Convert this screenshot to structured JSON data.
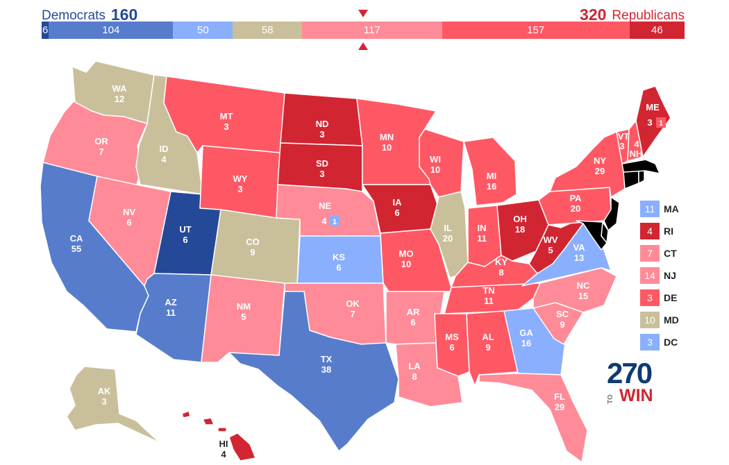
{
  "header": {
    "dem_label": "Democrats",
    "dem_total": "160",
    "rep_total": "320",
    "rep_label": "Republicans"
  },
  "colors": {
    "safe_dem": "#244999",
    "likely_dem": "#577ccc",
    "leans_dem": "#8aafff",
    "tossup": "#c9c09b",
    "leans_rep": "#ff8b98",
    "likely_rep": "#ff5865",
    "safe_rep": "#d22532"
  },
  "bar": {
    "segments": [
      {
        "value": "6",
        "category": "safe_dem"
      },
      {
        "value": "104",
        "category": "likely_dem"
      },
      {
        "value": "50",
        "category": "leans_dem"
      },
      {
        "value": "58",
        "category": "tossup"
      },
      {
        "value": "117",
        "category": "leans_rep"
      },
      {
        "value": "157",
        "category": "likely_rep"
      },
      {
        "value": "46",
        "category": "safe_rep"
      }
    ]
  },
  "states": {
    "WA": {
      "name": "WA",
      "ev": "12",
      "cat": "tossup"
    },
    "OR": {
      "name": "OR",
      "ev": "7",
      "cat": "leans_rep"
    },
    "CA": {
      "name": "CA",
      "ev": "55",
      "cat": "likely_dem"
    },
    "ID": {
      "name": "ID",
      "ev": "4",
      "cat": "tossup"
    },
    "NV": {
      "name": "NV",
      "ev": "6",
      "cat": "leans_rep"
    },
    "UT": {
      "name": "UT",
      "ev": "6",
      "cat": "safe_dem"
    },
    "AZ": {
      "name": "AZ",
      "ev": "11",
      "cat": "likely_dem"
    },
    "MT": {
      "name": "MT",
      "ev": "3",
      "cat": "likely_rep"
    },
    "WY": {
      "name": "WY",
      "ev": "3",
      "cat": "likely_rep"
    },
    "CO": {
      "name": "CO",
      "ev": "9",
      "cat": "tossup"
    },
    "NM": {
      "name": "NM",
      "ev": "5",
      "cat": "leans_rep"
    },
    "ND": {
      "name": "ND",
      "ev": "3",
      "cat": "safe_rep"
    },
    "SD": {
      "name": "SD",
      "ev": "3",
      "cat": "safe_rep"
    },
    "NE": {
      "name": "NE",
      "ev": "4",
      "ev_district": "1",
      "cat": "leans_rep"
    },
    "KS": {
      "name": "KS",
      "ev": "6",
      "cat": "leans_dem"
    },
    "OK": {
      "name": "OK",
      "ev": "7",
      "cat": "leans_rep"
    },
    "TX": {
      "name": "TX",
      "ev": "38",
      "cat": "likely_dem"
    },
    "MN": {
      "name": "MN",
      "ev": "10",
      "cat": "likely_rep"
    },
    "IA": {
      "name": "IA",
      "ev": "6",
      "cat": "safe_rep"
    },
    "MO": {
      "name": "MO",
      "ev": "10",
      "cat": "likely_rep"
    },
    "AR": {
      "name": "AR",
      "ev": "6",
      "cat": "leans_rep"
    },
    "LA": {
      "name": "LA",
      "ev": "8",
      "cat": "leans_rep"
    },
    "WI": {
      "name": "WI",
      "ev": "10",
      "cat": "likely_rep"
    },
    "IL": {
      "name": "IL",
      "ev": "20",
      "cat": "tossup"
    },
    "MI": {
      "name": "MI",
      "ev": "16",
      "cat": "likely_rep"
    },
    "IN": {
      "name": "IN",
      "ev": "11",
      "cat": "likely_rep"
    },
    "OH": {
      "name": "OH",
      "ev": "18",
      "cat": "safe_rep"
    },
    "KY": {
      "name": "KY",
      "ev": "8",
      "cat": "likely_rep"
    },
    "TN": {
      "name": "TN",
      "ev": "11",
      "cat": "likely_rep"
    },
    "MS": {
      "name": "MS",
      "ev": "6",
      "cat": "likely_rep"
    },
    "AL": {
      "name": "AL",
      "ev": "9",
      "cat": "likely_rep"
    },
    "GA": {
      "name": "GA",
      "ev": "16",
      "cat": "leans_dem"
    },
    "FL": {
      "name": "FL",
      "ev": "29",
      "cat": "leans_rep"
    },
    "SC": {
      "name": "SC",
      "ev": "9",
      "cat": "leans_rep"
    },
    "NC": {
      "name": "NC",
      "ev": "15",
      "cat": "leans_rep"
    },
    "VA": {
      "name": "VA",
      "ev": "13",
      "cat": "leans_dem"
    },
    "WV": {
      "name": "WV",
      "ev": "5",
      "cat": "safe_rep"
    },
    "PA": {
      "name": "PA",
      "ev": "20",
      "cat": "likely_rep"
    },
    "NY": {
      "name": "NY",
      "ev": "29",
      "cat": "likely_rep"
    },
    "VT": {
      "name": "VT",
      "ev": "3",
      "cat": "likely_rep"
    },
    "NH": {
      "name": "NH",
      "ev": "4",
      "cat": "likely_rep"
    },
    "ME": {
      "name": "ME",
      "ev": "3",
      "ev_district": "1",
      "cat": "safe_rep"
    },
    "AK": {
      "name": "AK",
      "ev": "3",
      "cat": "tossup"
    },
    "HI": {
      "name": "HI",
      "ev": "4",
      "cat": "safe_rep"
    }
  },
  "small_states": [
    {
      "abbr": "MA",
      "ev": "11",
      "cat": "leans_dem"
    },
    {
      "abbr": "RI",
      "ev": "4",
      "cat": "safe_rep"
    },
    {
      "abbr": "CT",
      "ev": "7",
      "cat": "leans_rep"
    },
    {
      "abbr": "NJ",
      "ev": "14",
      "cat": "leans_rep"
    },
    {
      "abbr": "DE",
      "ev": "3",
      "cat": "likely_rep"
    },
    {
      "abbr": "MD",
      "ev": "10",
      "cat": "tossup"
    },
    {
      "abbr": "DC",
      "ev": "3",
      "cat": "leans_dem"
    }
  ],
  "logo": {
    "number": "270",
    "to": "TO",
    "win": "WIN"
  }
}
